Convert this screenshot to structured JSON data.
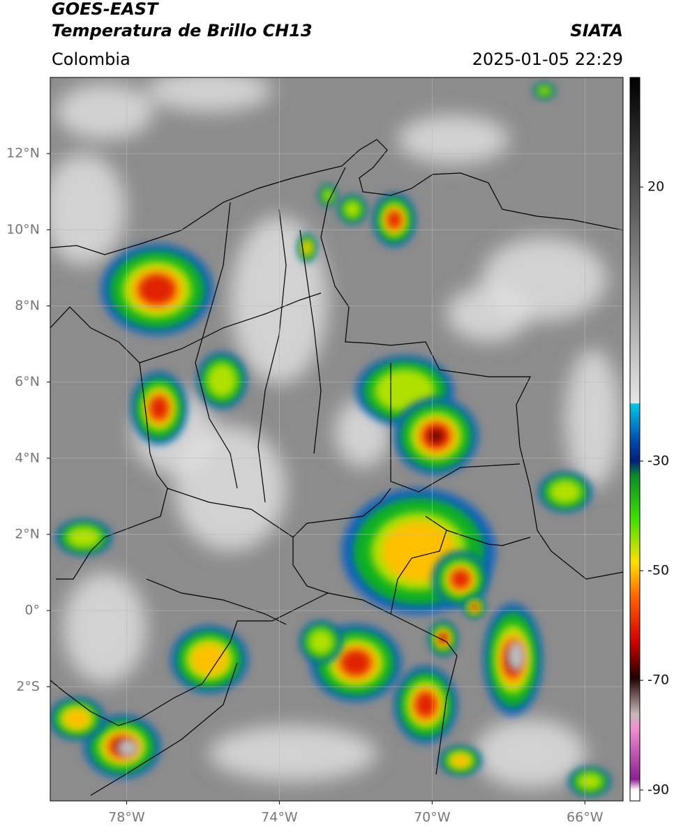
{
  "header": {
    "title_line1": "GOES-EAST",
    "title_line2": "Temperatura de Brillo CH13",
    "source": "SIATA",
    "region": "Colombia",
    "datetime": "2025-01-05 22:29"
  },
  "map": {
    "xlim": [
      -80,
      -65
    ],
    "ylim": [
      -5,
      14
    ],
    "xticks": [
      {
        "value": -78,
        "label": "78°W"
      },
      {
        "value": -74,
        "label": "74°W"
      },
      {
        "value": -70,
        "label": "70°W"
      },
      {
        "value": -66,
        "label": "66°W"
      }
    ],
    "yticks": [
      {
        "value": 12,
        "label": "12°N"
      },
      {
        "value": 10,
        "label": "10°N"
      },
      {
        "value": 8,
        "label": "8°N"
      },
      {
        "value": 6,
        "label": "6°N"
      },
      {
        "value": 4,
        "label": "4°N"
      },
      {
        "value": 2,
        "label": "2°N"
      },
      {
        "value": 0,
        "label": "0°"
      },
      {
        "value": -2,
        "label": "2°S"
      }
    ],
    "grid": true
  },
  "colorbar": {
    "lim": [
      -92,
      40
    ],
    "ticks": [
      20,
      -30,
      -50,
      -70,
      -90
    ]
  }
}
